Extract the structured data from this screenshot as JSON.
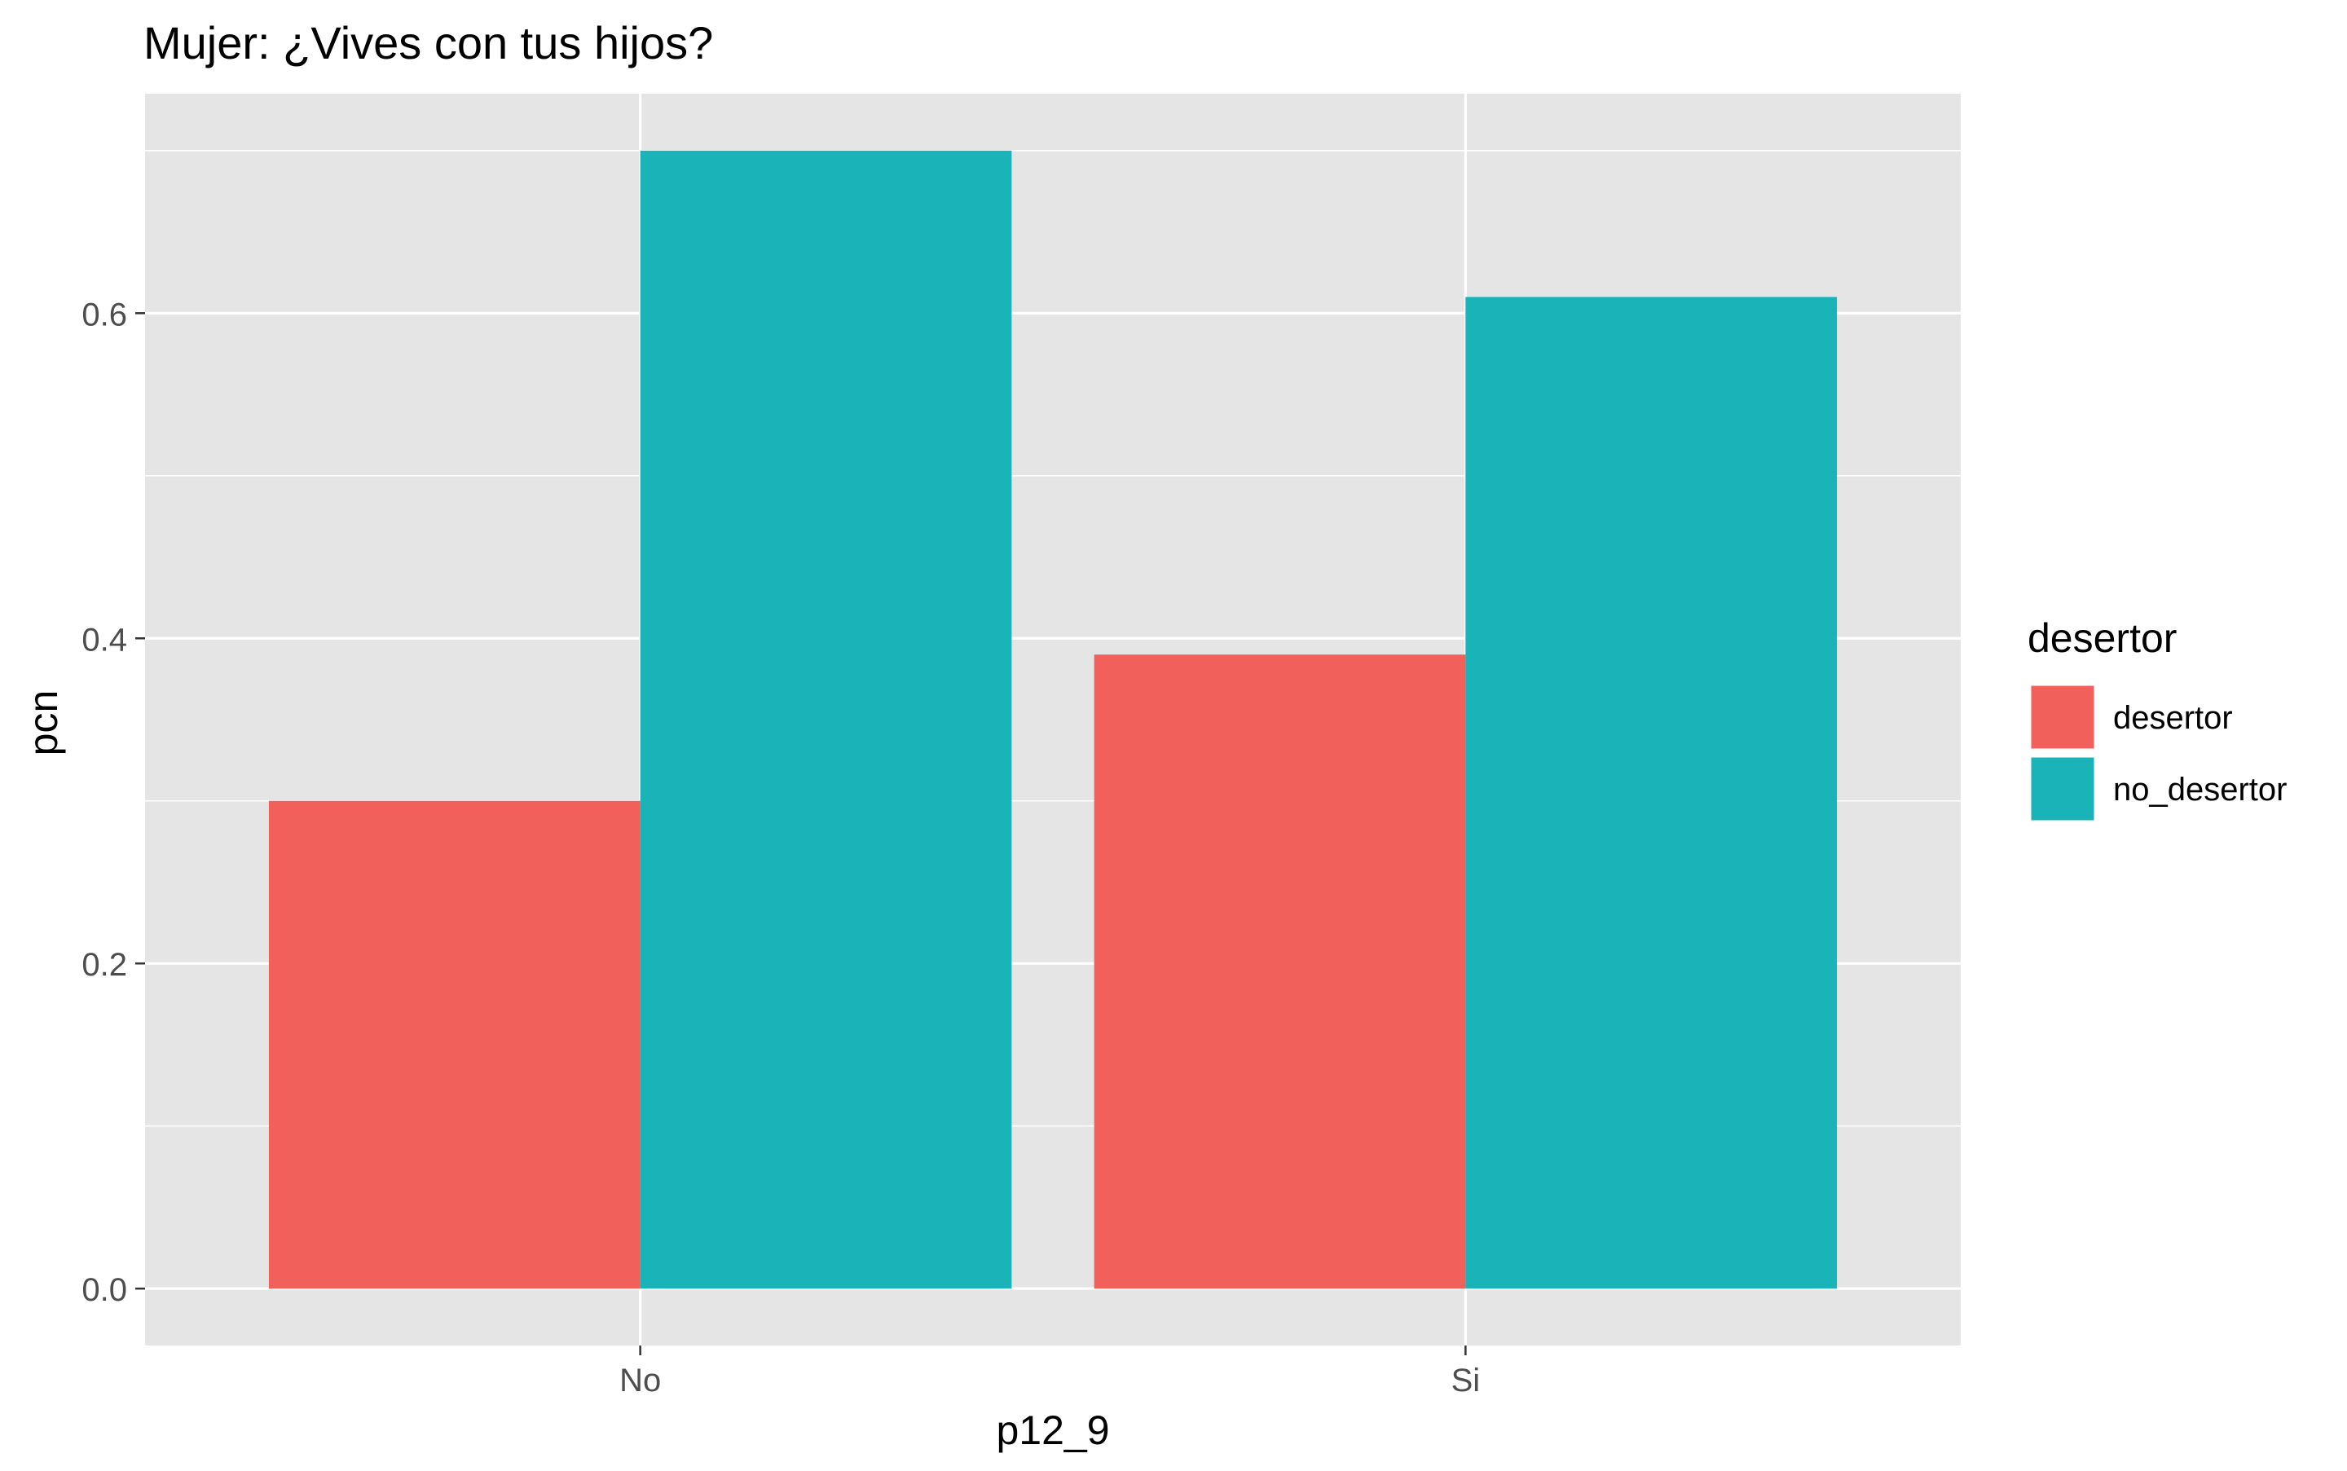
{
  "chart_data": {
    "type": "bar",
    "title": "Mujer: ¿Vives con tus hijos?",
    "xlabel": "p12_9",
    "ylabel": "pcn",
    "categories": [
      "No",
      "Si"
    ],
    "series": [
      {
        "name": "desertor",
        "color": "#F2605B",
        "values": [
          0.3,
          0.39
        ]
      },
      {
        "name": "no_desertor",
        "color": "#19B3B8",
        "values": [
          0.7,
          0.61
        ]
      }
    ],
    "ylim": [
      -0.035,
      0.735
    ],
    "yticks": [
      0.0,
      0.2,
      0.4,
      0.6
    ],
    "ytick_labels": [
      "0.0",
      "0.2",
      "0.4",
      "0.6"
    ],
    "grid": true,
    "legend": {
      "title": "desertor",
      "placement": "right"
    },
    "panel_background": "#E5E5E5",
    "grid_color": "#FFFFFF"
  }
}
